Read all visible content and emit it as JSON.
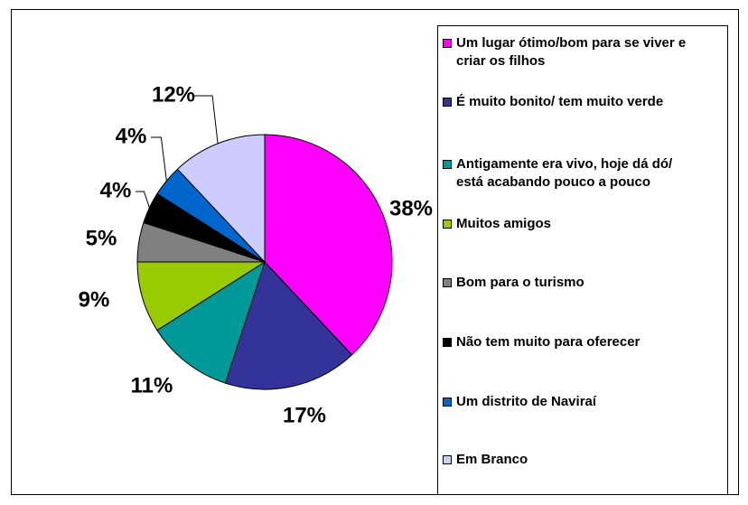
{
  "chart_data": {
    "type": "pie",
    "categories": [
      "Um lugar ótimo/bom para se viver e criar os filhos",
      "É muito bonito/ tem muito verde",
      "Antigamente era vivo, hoje dá dó/ está acabando pouco a pouco",
      "Muitos amigos",
      "Bom para o turismo",
      "Não tem muito para oferecer",
      "Um distrito de Naviraí",
      "Em Branco"
    ],
    "values": [
      38,
      17,
      11,
      9,
      5,
      4,
      4,
      12
    ],
    "value_labels": [
      "38%",
      "17%",
      "11%",
      "9%",
      "5%",
      "4%",
      "4%",
      "12%"
    ],
    "colors": [
      "#ff00ff",
      "#333399",
      "#009999",
      "#99cc00",
      "#808080",
      "#000000",
      "#0066cc",
      "#ccccff"
    ],
    "legend": "right"
  }
}
